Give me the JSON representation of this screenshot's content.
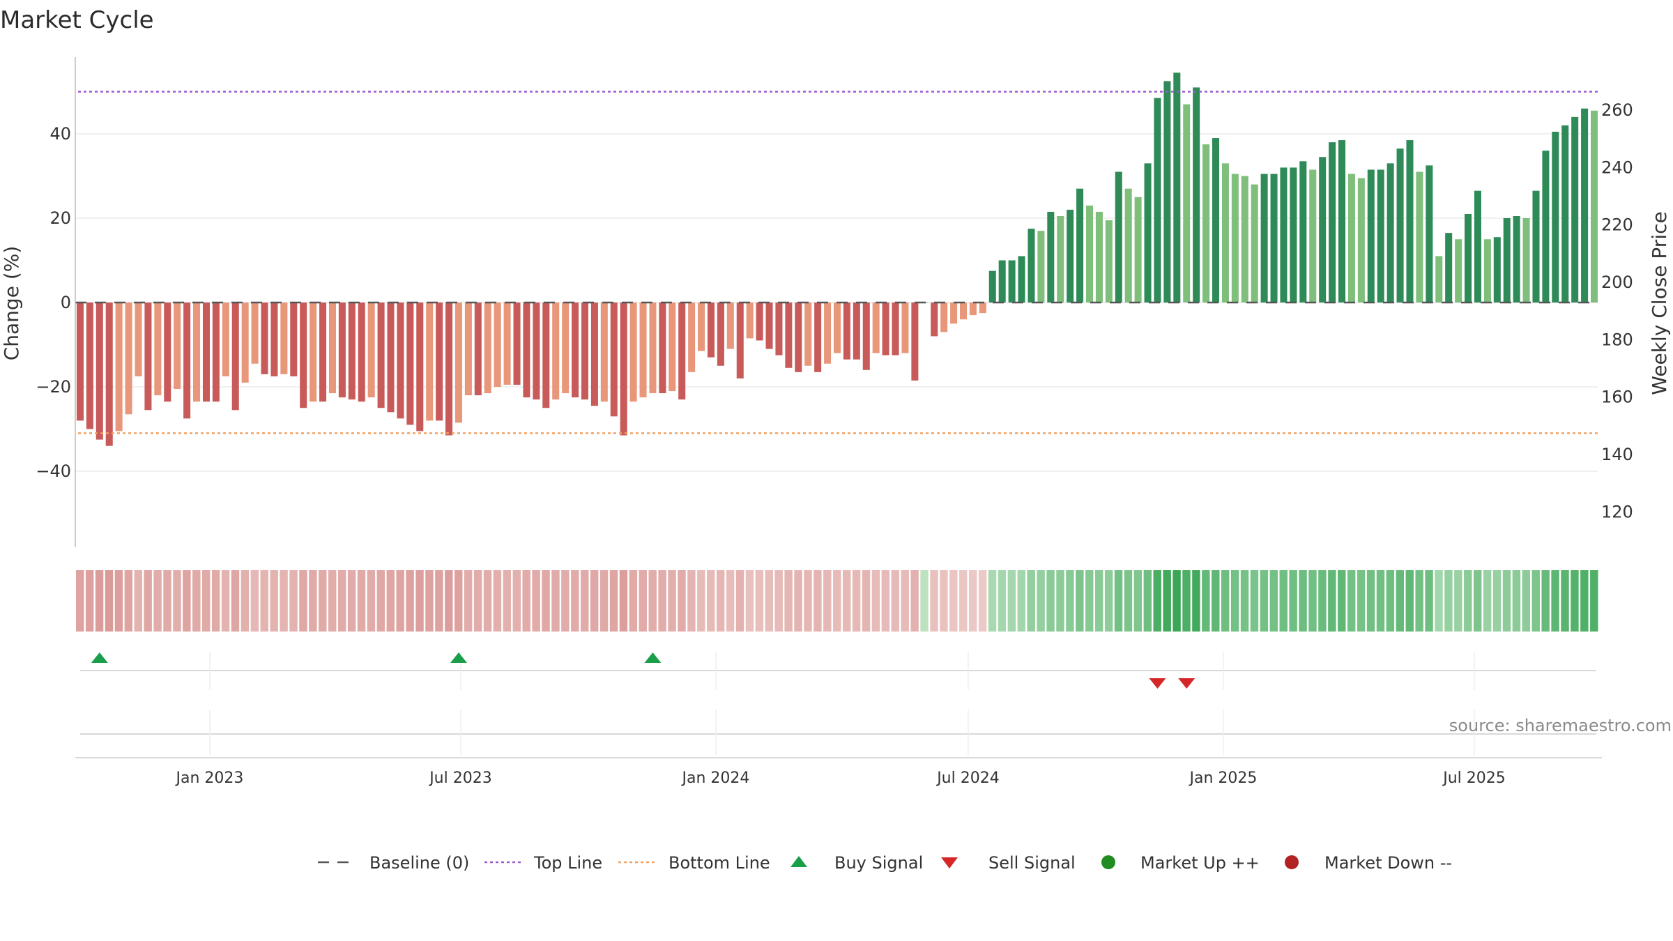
{
  "chart_data": {
    "type": "bar",
    "title": "Market Cycle",
    "ylabel_left": "Change (%)",
    "ylabel_right": "Weekly Close Price",
    "yticks_left": [
      "40",
      "20",
      "0",
      "−20",
      "−40"
    ],
    "yticks_right": [
      "260",
      "240",
      "220",
      "200",
      "180",
      "160",
      "140",
      "120"
    ],
    "ylim_left": [
      -58,
      58
    ],
    "ylim_right": [
      114,
      273
    ],
    "xticks": [
      "Jan 2023",
      "Jul 2023",
      "Jan 2024",
      "Jul 2024",
      "Jan 2025",
      "Jul 2025"
    ],
    "xtick_dates": [
      "2023-01-01",
      "2023-07-01",
      "2024-01-01",
      "2024-07-01",
      "2025-01-01",
      "2025-07-01"
    ],
    "x_start": "2022-09-26",
    "x_end": "2025-09-28",
    "top_line": 50,
    "bottom_line": -31,
    "baseline": 0,
    "series": [
      {
        "name": "Change (%)",
        "start": "2022-09-26",
        "interval_days": 7,
        "values": [
          -28,
          -30,
          -32.5,
          -34,
          -30.5,
          -26.5,
          -17.5,
          -25.5,
          -22,
          -23.5,
          -20.5,
          -27.5,
          -23.5,
          -23.5,
          -23.5,
          -17.5,
          -25.5,
          -19,
          -14.5,
          -17,
          -17.5,
          -17,
          -17.5,
          -25,
          -23.5,
          -23.5,
          -21.5,
          -22.5,
          -23,
          -23.5,
          -22.5,
          -25,
          -26,
          -27.5,
          -29,
          -30.5,
          -28,
          -28,
          -31.5,
          -28.5,
          -22,
          -22,
          -21.5,
          -20,
          -19.5,
          -19.5,
          -22.5,
          -23,
          -25,
          -23,
          -21.5,
          -22.5,
          -23,
          -24.5,
          -23.5,
          -27,
          -31.5,
          -23.5,
          -22.5,
          -21.5,
          -21.5,
          -21,
          -23,
          -16.5,
          -11.5,
          -13,
          -15,
          -11,
          -18,
          -8.5,
          -9,
          -11,
          -12.5,
          -15.5,
          -16.5,
          -15,
          -16.5,
          -14.5,
          -12,
          -13.5,
          -13.5,
          -16,
          -12,
          -12.5,
          -12.5,
          -12,
          -18.5,
          0,
          -8,
          -7,
          -5,
          -4,
          -3,
          -2.5,
          7.5,
          10,
          10,
          11,
          17.5,
          17,
          21.5,
          20.5,
          22,
          27,
          23,
          21.5,
          19.5,
          31,
          27,
          25,
          33,
          48.5,
          52.5,
          54.5,
          47,
          51,
          37.5,
          39,
          33,
          30.5,
          30,
          28,
          30.5,
          30.5,
          32,
          32,
          33.5,
          31.5,
          34.5,
          38,
          38.5,
          30.5,
          29.5,
          31.5,
          31.5,
          33,
          36.5,
          38.5,
          31,
          32.5,
          11,
          16.5,
          15,
          21,
          26.5,
          15,
          15.5,
          20,
          20.5,
          20,
          26.5,
          36,
          40.5,
          42,
          44,
          46,
          45.5
        ]
      }
    ],
    "heat_strip": {
      "values": [
        -28,
        -30,
        -32.5,
        -34,
        -30.5,
        -26.5,
        -17.5,
        -25.5,
        -22,
        -23.5,
        -20.5,
        -27.5,
        -23.5,
        -23.5,
        -23.5,
        -17.5,
        -25.5,
        -19,
        -14.5,
        -17,
        -17.5,
        -17,
        -17.5,
        -25,
        -23.5,
        -23.5,
        -21.5,
        -22.5,
        -23,
        -23.5,
        -22.5,
        -25,
        -26,
        -27.5,
        -29,
        -30.5,
        -28,
        -28,
        -31.5,
        -28.5,
        -22,
        -22,
        -21.5,
        -20,
        -19.5,
        -19.5,
        -22.5,
        -23,
        -25,
        -23,
        -21.5,
        -22.5,
        -23,
        -24.5,
        -23.5,
        -27,
        -31.5,
        -23.5,
        -22.5,
        -21.5,
        -21.5,
        -21,
        -23,
        -16.5,
        -11.5,
        -13,
        -15,
        -11,
        -18,
        -8.5,
        -9,
        -11,
        -12.5,
        -15.5,
        -16.5,
        -15,
        -16.5,
        -14.5,
        -12,
        -13.5,
        -13.5,
        -16,
        -12,
        -12.5,
        -12.5,
        -12,
        -18.5,
        0,
        -8,
        -7,
        -5,
        -4,
        -3,
        -2.5,
        7.5,
        10,
        10,
        11,
        17.5,
        17,
        21.5,
        20.5,
        22,
        27,
        23,
        21.5,
        19.5,
        31,
        27,
        25,
        33,
        48.5,
        52.5,
        54.5,
        47,
        51,
        37.5,
        39,
        33,
        30.5,
        30,
        28,
        30.5,
        30.5,
        32,
        32,
        33.5,
        31.5,
        34.5,
        38,
        38.5,
        30.5,
        29.5,
        31.5,
        31.5,
        33,
        36.5,
        38.5,
        31,
        32.5,
        11,
        16.5,
        15,
        21,
        26.5,
        15,
        15.5,
        20,
        20.5,
        20,
        26.5,
        36,
        40.5,
        42,
        44,
        46,
        45.5
      ]
    },
    "buy_signals": [
      "2022-10-10",
      "2023-06-26",
      "2023-11-13"
    ],
    "sell_signals": [
      "2024-11-11",
      "2024-12-02"
    ],
    "legend": [
      {
        "label": "Baseline (0)",
        "symbol": "dash"
      },
      {
        "label": "Top Line",
        "symbol": "dot-purple"
      },
      {
        "label": "Bottom Line",
        "symbol": "dot-orange"
      },
      {
        "label": "Buy Signal",
        "symbol": "triangle-up"
      },
      {
        "label": "Sell Signal",
        "symbol": "triangle-down"
      },
      {
        "label": "Market Up ++",
        "symbol": "circle-green"
      },
      {
        "label": "Market Down --",
        "symbol": "circle-red"
      }
    ],
    "legend_position": "bottom",
    "source": "source: sharemaestro.com",
    "colors": {
      "neg_strong": "#c85a5a",
      "neg_light": "#e8977a",
      "pos_strong": "#2e8b57",
      "pos_light": "#7fbf7b",
      "top_line": "#9b59d0",
      "bottom_line": "#f0a060",
      "buy": "#1a9e4a",
      "sell": "#d62728",
      "market_up": "#228b22",
      "market_down": "#b22222",
      "baseline": "#555555"
    }
  }
}
